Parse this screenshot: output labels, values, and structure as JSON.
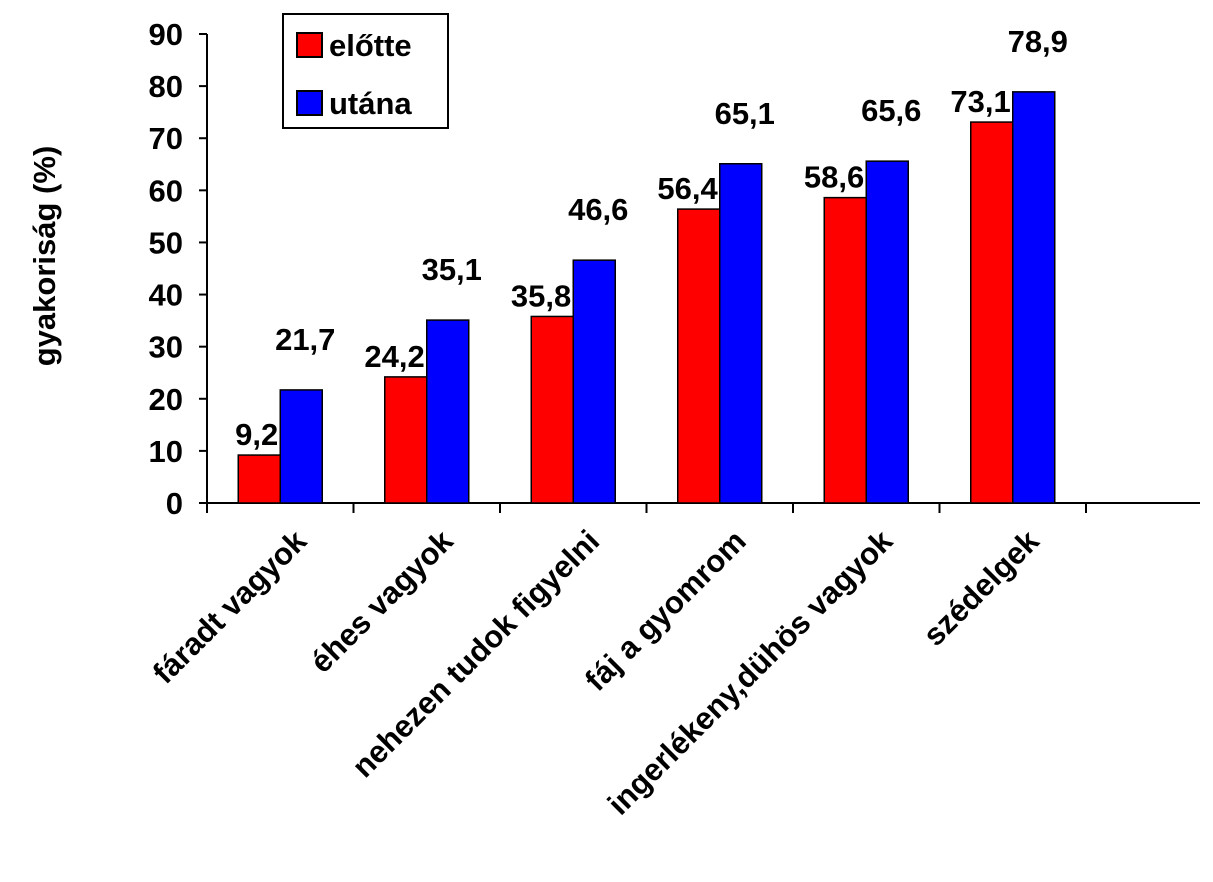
{
  "chart_data": {
    "type": "bar",
    "ylabel": "gyakoriság (%)",
    "xlabel": "",
    "ylim": [
      0,
      90
    ],
    "yticks": [
      0,
      10,
      20,
      30,
      40,
      50,
      60,
      70,
      80,
      90
    ],
    "categories": [
      "fáradt vagyok",
      "éhes vagyok",
      "nehezen tudok figyelni",
      "fáj a gyomrom",
      "ingerlékeny,dühös vagyok",
      "szédelgek"
    ],
    "series": [
      {
        "name": "előtte",
        "color": "#ff0000",
        "values": [
          9.2,
          24.2,
          35.8,
          56.4,
          58.6,
          73.1
        ],
        "labels": [
          "9,2",
          "24,2",
          "35,8",
          "56,4",
          "58,6",
          "73,1"
        ]
      },
      {
        "name": "utána",
        "color": "#0000ff",
        "values": [
          21.7,
          35.1,
          46.6,
          65.1,
          65.6,
          78.9
        ],
        "labels": [
          "21,7",
          "35,1",
          "46,6",
          "65,1",
          "65,6",
          "78,9"
        ]
      }
    ],
    "legend_position": "top-left",
    "grid": false
  }
}
